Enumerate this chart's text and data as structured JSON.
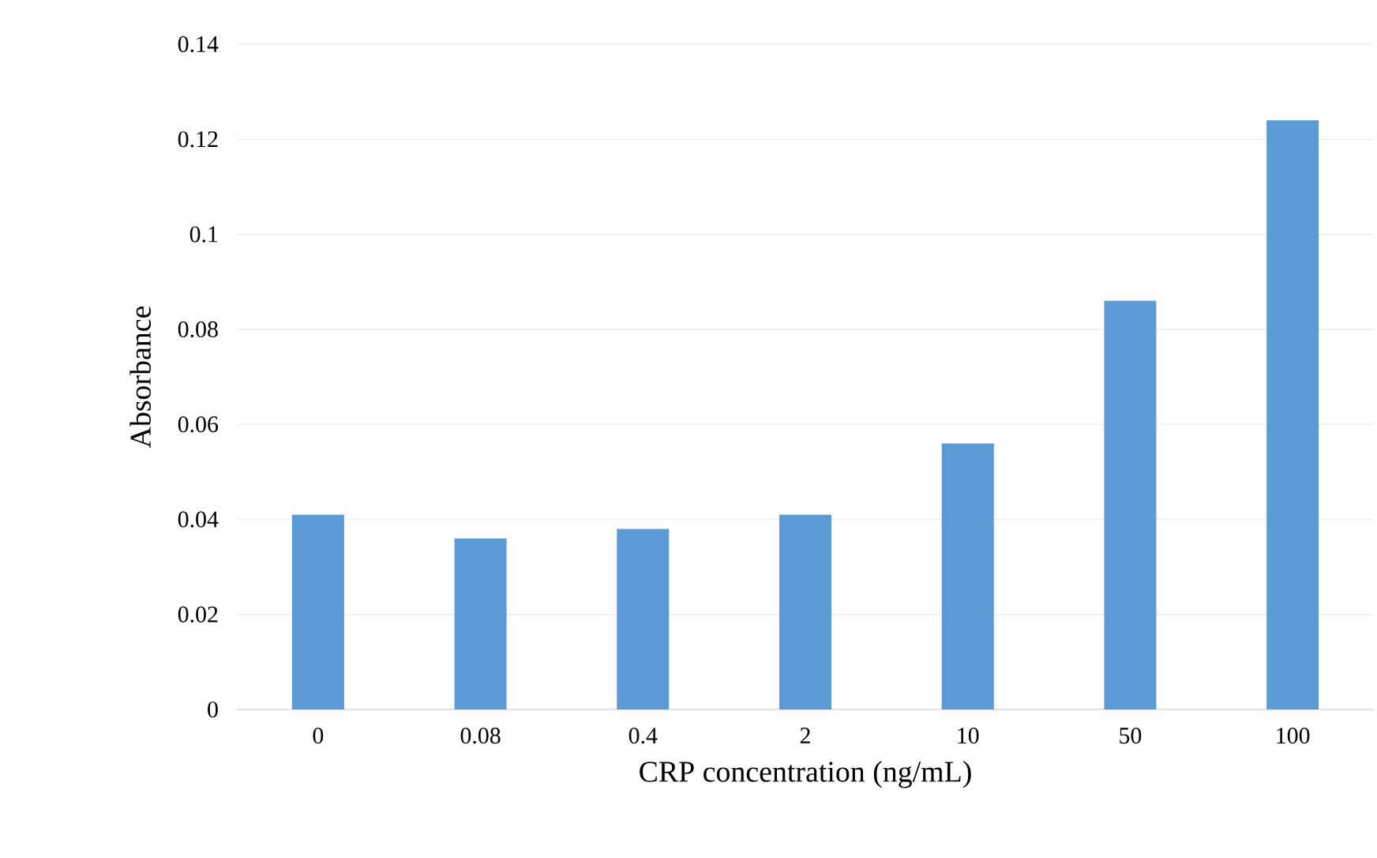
{
  "chart_data": {
    "type": "bar",
    "xlabel": "CRP concentration (ng/mL)",
    "ylabel": "Absorbance",
    "categories": [
      "0",
      "0.08",
      "0.4",
      "2",
      "10",
      "50",
      "100"
    ],
    "values": [
      0.041,
      0.036,
      0.038,
      0.041,
      0.056,
      0.086,
      0.124
    ],
    "color": "#5b9bd5",
    "ylim": [
      0,
      0.14
    ],
    "yticks": [
      0,
      0.02,
      0.04,
      0.06,
      0.08,
      0.1,
      0.12,
      0.14
    ],
    "grid": "y"
  }
}
